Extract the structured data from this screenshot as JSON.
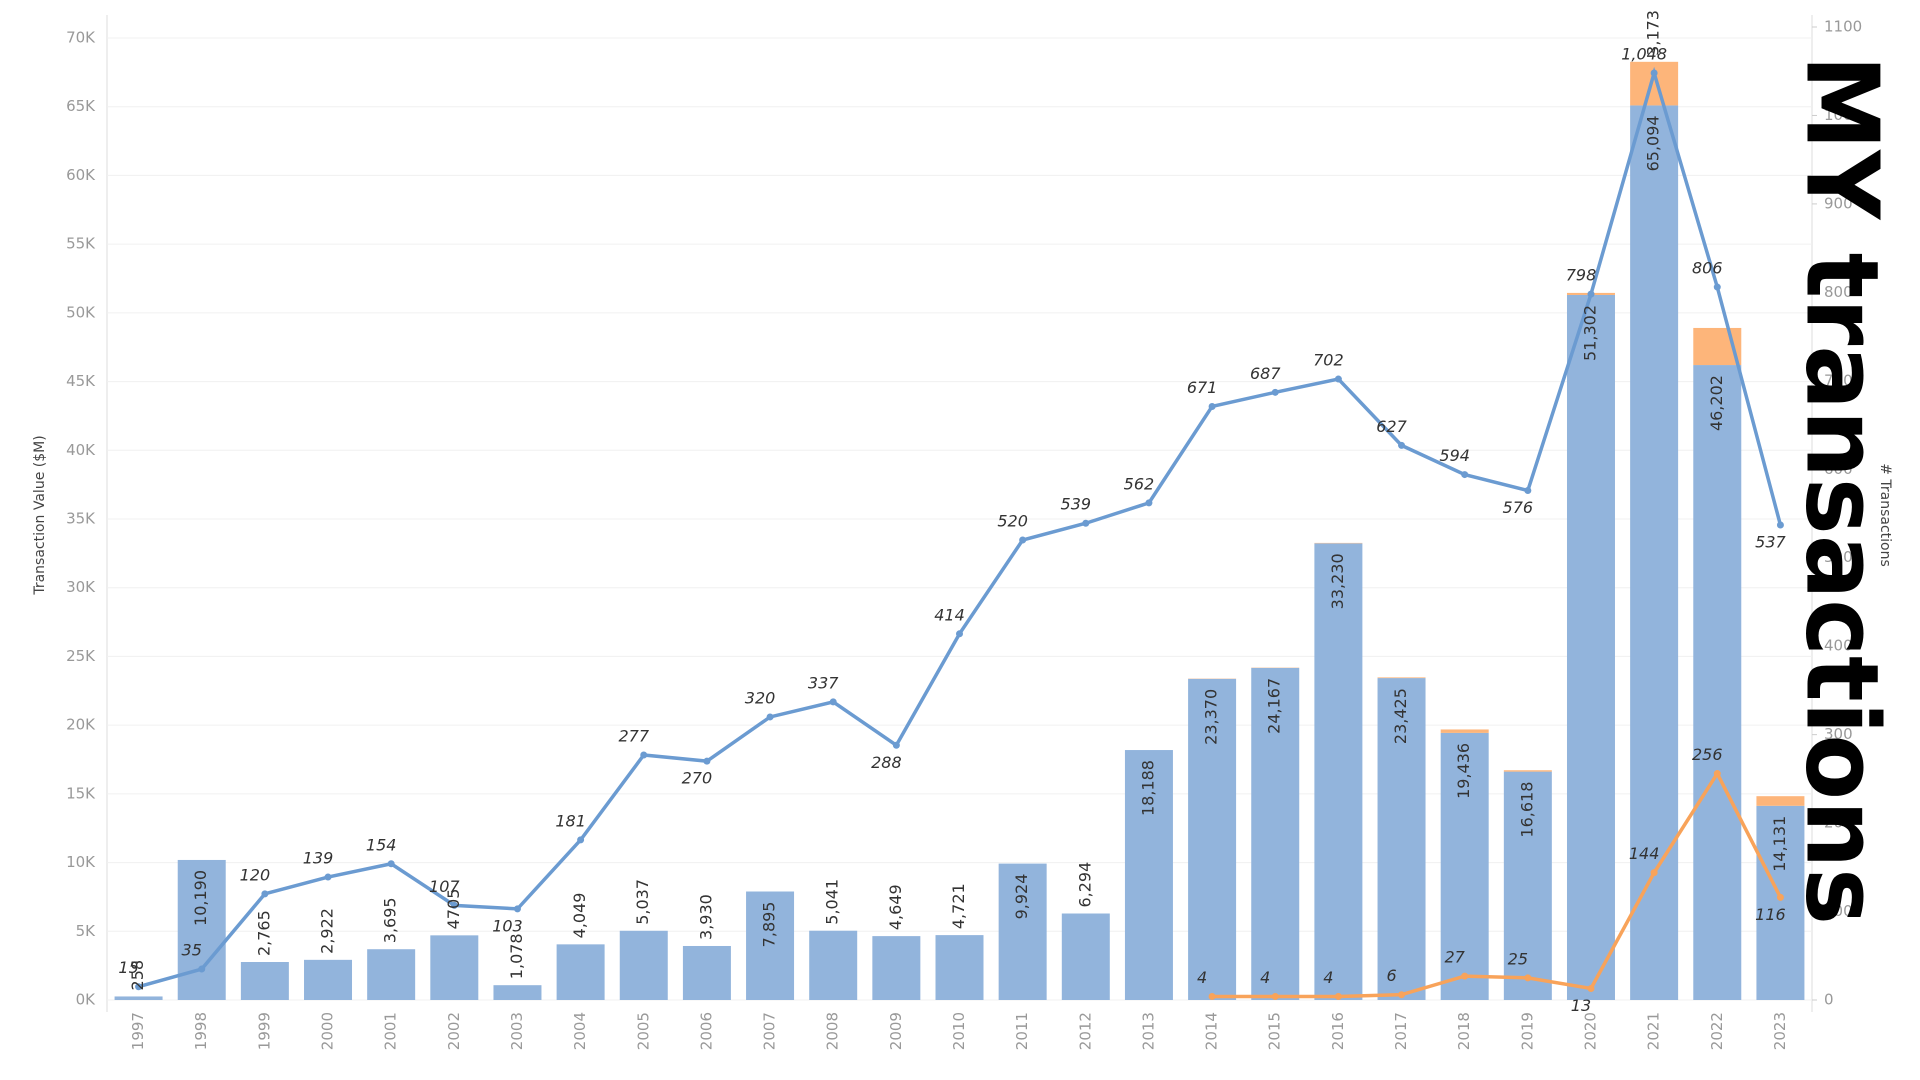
{
  "chart_data": {
    "type": "bar",
    "title": "MY transactions",
    "y_label": "Transaction Value ($M)",
    "y2_label": "# Transactions",
    "categories": [
      "1997",
      "1998",
      "1999",
      "2000",
      "2001",
      "2002",
      "2003",
      "2004",
      "2005",
      "2006",
      "2007",
      "2008",
      "2009",
      "2010",
      "2011",
      "2012",
      "2013",
      "2014",
      "2015",
      "2016",
      "2017",
      "2018",
      "2019",
      "2020",
      "2021",
      "2022",
      "2023"
    ],
    "ylim": [
      0,
      70000
    ],
    "yticks": [
      {
        "value": 0,
        "label": "0K"
      },
      {
        "value": 5000,
        "label": "5K"
      },
      {
        "value": 10000,
        "label": "10K"
      },
      {
        "value": 15000,
        "label": "15K"
      },
      {
        "value": 20000,
        "label": "20K"
      },
      {
        "value": 25000,
        "label": "25K"
      },
      {
        "value": 30000,
        "label": "30K"
      },
      {
        "value": 35000,
        "label": "35K"
      },
      {
        "value": 40000,
        "label": "40K"
      },
      {
        "value": 45000,
        "label": "45K"
      },
      {
        "value": 50000,
        "label": "50K"
      },
      {
        "value": 55000,
        "label": "55K"
      },
      {
        "value": 60000,
        "label": "60K"
      },
      {
        "value": 65000,
        "label": "65K"
      },
      {
        "value": 70000,
        "label": "70K"
      }
    ],
    "y2lim": [
      0,
      1100
    ],
    "y2ticks": [
      0,
      100,
      200,
      300,
      400,
      500,
      600,
      700,
      800,
      900,
      1000,
      1100
    ],
    "grid": true,
    "series": [
      {
        "type": "bar",
        "color": "#92b4dc",
        "values": [
          258,
          10190,
          2765,
          2922,
          3695,
          4705,
          1078,
          4049,
          5037,
          3930,
          7895,
          5041,
          4649,
          4721,
          9924,
          6294,
          18188,
          23370,
          24167,
          33230,
          23425,
          19436,
          16618,
          51302,
          65094,
          46202,
          14131
        ],
        "value_labels": [
          "258",
          "10,190",
          "2,765",
          "2,922",
          "3,695",
          "4705",
          "1,078",
          "4,049",
          "5,037",
          "3,930",
          "7,895",
          "5,041",
          "4,649",
          "4,721",
          "9,924",
          "6,294",
          "18,188",
          "23,370",
          "24,167",
          "33,230",
          "23,425",
          "19,436",
          "16,618",
          "51,302",
          "65,094",
          "46,202",
          "14,131"
        ]
      },
      {
        "type": "bar",
        "color": "#fdb57a",
        "values": [
          null,
          null,
          null,
          null,
          null,
          null,
          null,
          null,
          null,
          null,
          null,
          null,
          null,
          null,
          null,
          null,
          null,
          20,
          20,
          30,
          50,
          250,
          100,
          150,
          3173,
          2700,
          700
        ],
        "value_labels": [
          null,
          null,
          null,
          null,
          null,
          null,
          null,
          null,
          null,
          null,
          null,
          null,
          null,
          null,
          null,
          null,
          null,
          null,
          null,
          null,
          null,
          null,
          null,
          null,
          "3,173",
          null,
          null
        ]
      },
      {
        "type": "line",
        "axis": "y2",
        "color": "#6b9bd1",
        "values": [
          15,
          35,
          120,
          139,
          154,
          107,
          103,
          181,
          277,
          270,
          320,
          337,
          288,
          414,
          520,
          539,
          562,
          671,
          687,
          702,
          627,
          594,
          576,
          798,
          1048,
          806,
          537
        ],
        "value_labels": [
          "15",
          "35",
          "120",
          "139",
          "154",
          "107",
          "103",
          "181",
          "277",
          "270",
          "320",
          "337",
          "288",
          "414",
          "520",
          "539",
          "562",
          "671",
          "687",
          "702",
          "627",
          "594",
          "576",
          "798",
          "1,048",
          "806",
          "537"
        ]
      },
      {
        "type": "line",
        "axis": "y2",
        "color": "#f8a35a",
        "values": [
          null,
          null,
          null,
          null,
          null,
          null,
          null,
          null,
          null,
          null,
          null,
          null,
          null,
          null,
          null,
          null,
          null,
          4,
          4,
          4,
          6,
          27,
          25,
          13,
          144,
          256,
          116
        ]
      }
    ]
  }
}
